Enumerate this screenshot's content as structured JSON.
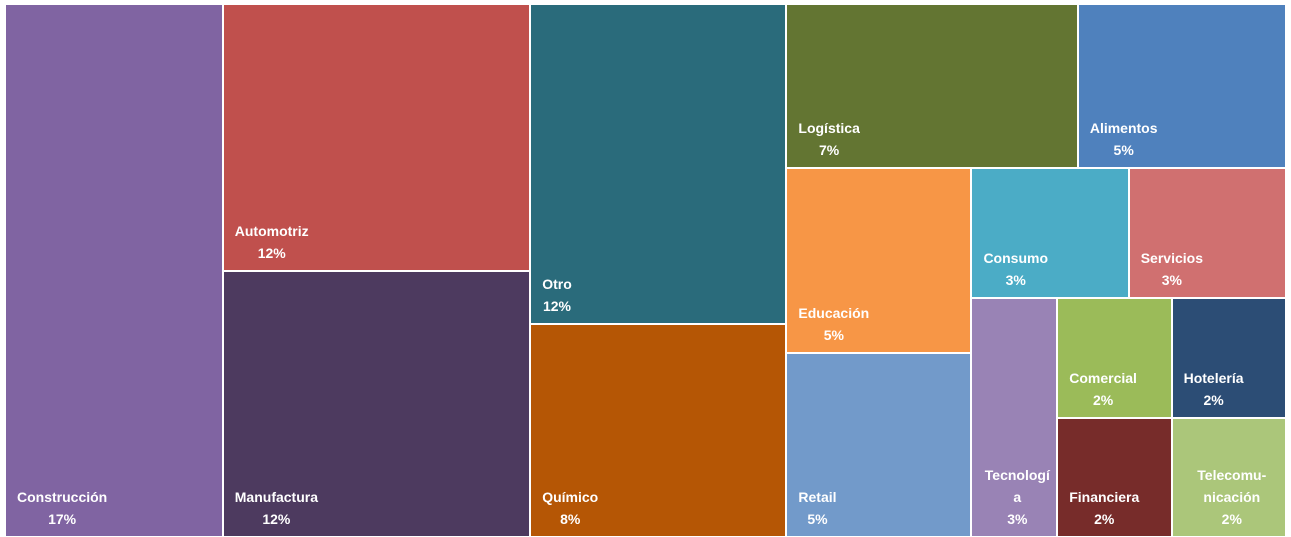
{
  "chart_data": {
    "type": "treemap",
    "categories": [
      "Construcción",
      "Automotriz",
      "Manufactura",
      "Otro",
      "Químico",
      "Logística",
      "Alimentos",
      "Educación",
      "Retail",
      "Consumo",
      "Servicios",
      "Tecnología",
      "Comercial",
      "Hotelería",
      "Financiera",
      "Telecomu-nicación"
    ],
    "values": [
      17,
      12,
      12,
      12,
      8,
      7,
      5,
      5,
      5,
      3,
      3,
      3,
      2,
      2,
      2,
      2
    ],
    "value_labels": [
      "17%",
      "12%",
      "12%",
      "12%",
      "8%",
      "7%",
      "5%",
      "5%",
      "5%",
      "3%",
      "3%",
      "3%",
      "2%",
      "2%",
      "2%",
      "2%"
    ],
    "colors": [
      "#8064a2",
      "#c0504d",
      "#4d3a5f",
      "#2a6b7b",
      "#b55605",
      "#637532",
      "#4f81bd",
      "#f79646",
      "#729aca",
      "#4bacc6",
      "#d07070",
      "#9983b5",
      "#9bbb59",
      "#2c4d75",
      "#772c2a",
      "#abc67a"
    ]
  }
}
